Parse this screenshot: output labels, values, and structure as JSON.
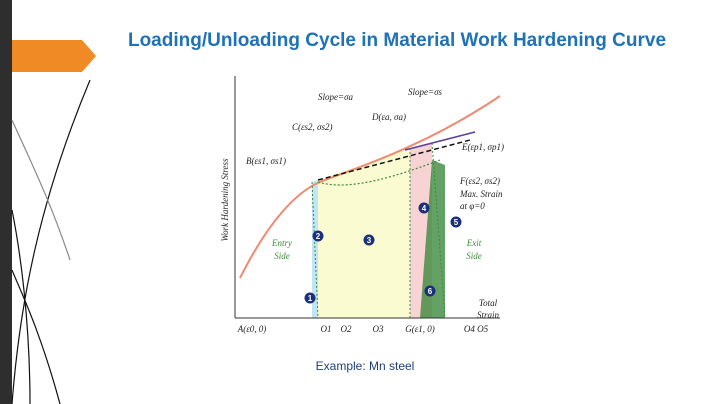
{
  "header": {
    "title": "Loading/Unloading Cycle in Material Work Hardening Curve"
  },
  "diagram": {
    "y_axis_label": "Work Hardening Stress",
    "x_axis_label": [
      "Total",
      "Strain"
    ],
    "slope_labels": [
      "Slope=σa",
      "Slope=σs"
    ],
    "points": [
      "B(εs1, σs1)",
      "C(εs2, σs2)",
      "D(εa, σa)",
      "E(εp1, σp1)",
      "F(εs2, σs2)"
    ],
    "f_note": [
      "Max. Strain",
      "at φ=0"
    ],
    "entry_side": [
      "Entry",
      "Side"
    ],
    "exit_side": [
      "Exit",
      "Side"
    ],
    "regions": [
      "1",
      "2",
      "3",
      "4",
      "5",
      "6"
    ],
    "bottom_labels": [
      "A(ε0, 0)",
      "O1",
      "O2",
      "O3",
      "G(ε1, 0)",
      "O4 O5"
    ]
  },
  "caption": "Example: Mn steel"
}
